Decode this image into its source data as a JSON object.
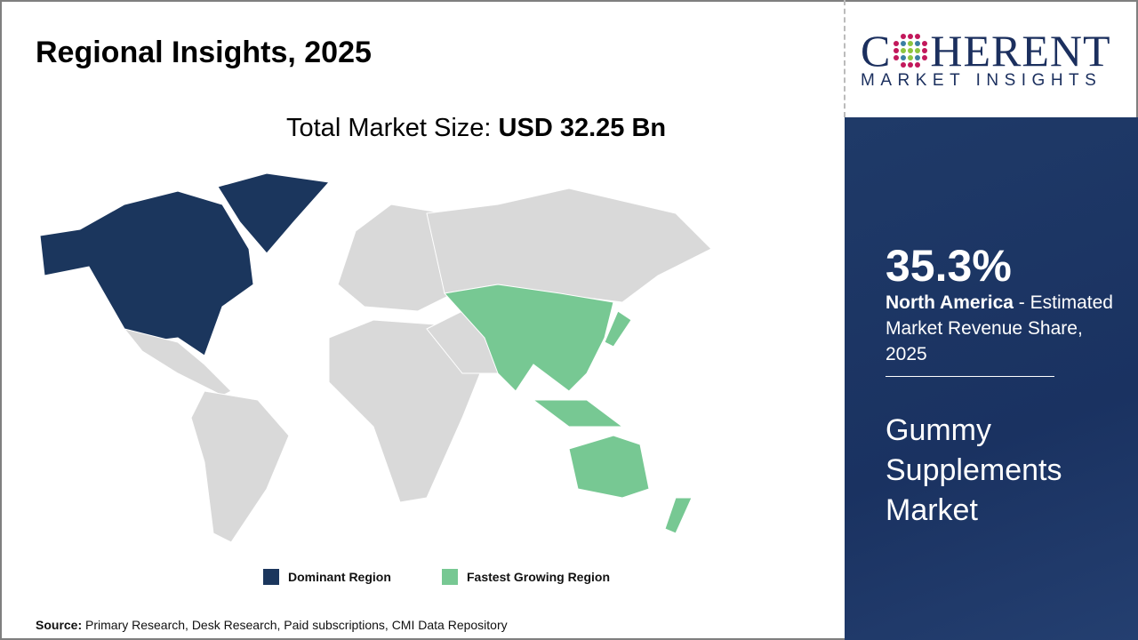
{
  "title": "Regional Insights, 2025",
  "total_label": "Total Market Size:",
  "total_value": "USD 32.25 Bn",
  "legend": [
    {
      "label": "Dominant Region",
      "color": "#1b365d"
    },
    {
      "label": "Fastest Growing Region",
      "color": "#77c893"
    }
  ],
  "map_colors": {
    "other": "#d9d9d9",
    "dominant": "#1b365d",
    "fastest": "#77c893"
  },
  "source_label": "Source:",
  "source_text": "Primary Research, Desk Research, Paid subscriptions, CMI Data Repository",
  "logo": {
    "big": "COHERENT",
    "small": "MARKET INSIGHTS"
  },
  "panel": {
    "share": "35.3%",
    "region": "North America",
    "desc": " - Estimated Market Revenue Share, 2025",
    "market": "Gummy Supplements Market"
  }
}
